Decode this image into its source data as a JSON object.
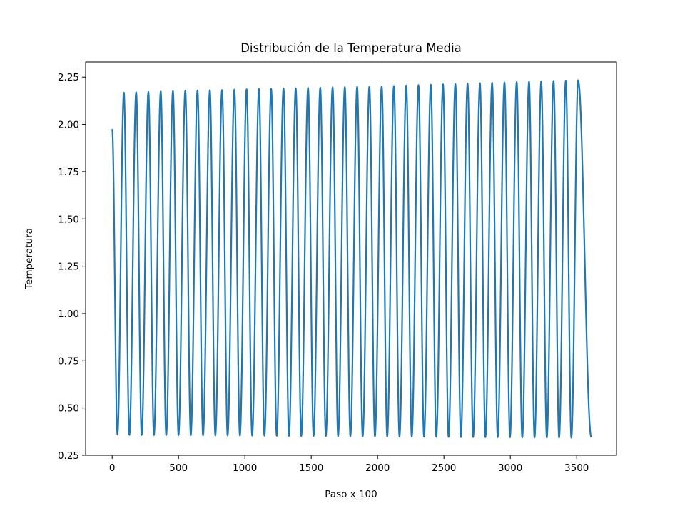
{
  "chart_data": {
    "type": "line",
    "title": "Distribución de la Temperatura Media",
    "xlabel": "Paso x 100",
    "ylabel": "Temperatura",
    "xlim": [
      -200,
      3800
    ],
    "ylim": [
      0.25,
      2.33
    ],
    "x_ticks": [
      0,
      500,
      1000,
      1500,
      2000,
      2500,
      3000,
      3500
    ],
    "x_tick_labels": [
      "0",
      "500",
      "1000",
      "1500",
      "2000",
      "2500",
      "3000",
      "3500"
    ],
    "y_ticks": [
      0.25,
      0.5,
      0.75,
      1.0,
      1.25,
      1.5,
      1.75,
      2.0,
      2.25
    ],
    "y_tick_labels": [
      "0.25",
      "0.50",
      "0.75",
      "1.00",
      "1.25",
      "1.50",
      "1.75",
      "2.00",
      "2.25"
    ],
    "grid": false,
    "series": [
      {
        "color": "#1f77b4",
        "start": {
          "x": 0,
          "y": 1.975
        },
        "end": {
          "x": 3610,
          "y": 0.345
        },
        "cycles": 37,
        "period": 92.5,
        "first_trough": {
          "x": 40,
          "y": 0.36
        },
        "peaks": [
          {
            "x": 88,
            "y": 2.168
          },
          {
            "x": 181,
            "y": 2.17
          },
          {
            "x": 273,
            "y": 2.172
          },
          {
            "x": 366,
            "y": 2.174
          },
          {
            "x": 458,
            "y": 2.176
          },
          {
            "x": 551,
            "y": 2.178
          },
          {
            "x": 643,
            "y": 2.18
          },
          {
            "x": 736,
            "y": 2.181
          },
          {
            "x": 828,
            "y": 2.182
          },
          {
            "x": 921,
            "y": 2.184
          },
          {
            "x": 1013,
            "y": 2.186
          },
          {
            "x": 1106,
            "y": 2.187
          },
          {
            "x": 1198,
            "y": 2.188
          },
          {
            "x": 1291,
            "y": 2.19
          },
          {
            "x": 1383,
            "y": 2.191
          },
          {
            "x": 1476,
            "y": 2.193
          },
          {
            "x": 1568,
            "y": 2.194
          },
          {
            "x": 1661,
            "y": 2.196
          },
          {
            "x": 1753,
            "y": 2.197
          },
          {
            "x": 1846,
            "y": 2.199
          },
          {
            "x": 1938,
            "y": 2.2
          },
          {
            "x": 2031,
            "y": 2.202
          },
          {
            "x": 2123,
            "y": 2.204
          },
          {
            "x": 2216,
            "y": 2.206
          },
          {
            "x": 2308,
            "y": 2.208
          },
          {
            "x": 2401,
            "y": 2.21
          },
          {
            "x": 2493,
            "y": 2.212
          },
          {
            "x": 2586,
            "y": 2.214
          },
          {
            "x": 2678,
            "y": 2.216
          },
          {
            "x": 2771,
            "y": 2.218
          },
          {
            "x": 2863,
            "y": 2.22
          },
          {
            "x": 2956,
            "y": 2.222
          },
          {
            "x": 3048,
            "y": 2.224
          },
          {
            "x": 3141,
            "y": 2.226
          },
          {
            "x": 3233,
            "y": 2.228
          },
          {
            "x": 3326,
            "y": 2.23
          },
          {
            "x": 3418,
            "y": 2.232
          },
          {
            "x": 3511,
            "y": 2.234
          }
        ],
        "trough_level_start": 0.358,
        "trough_level_end": 0.342
      }
    ]
  }
}
